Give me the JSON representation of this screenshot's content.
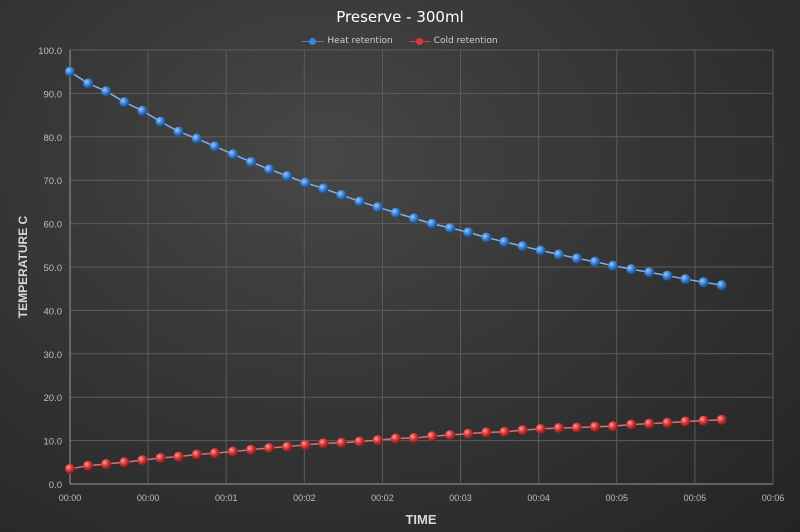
{
  "chart_data": {
    "type": "line",
    "title": "Preserve - 300ml",
    "xlabel": "TIME",
    "ylabel": "TEMPERATURE C",
    "ylim": [
      0,
      100
    ],
    "yticks": [
      "0.0",
      "10.0",
      "20.0",
      "30.0",
      "40.0",
      "50.0",
      "60.0",
      "70.0",
      "80.0",
      "90.0",
      "100.0"
    ],
    "xlim_minutes": [
      0,
      6
    ],
    "xticks": [
      "00:00",
      "00:00",
      "00:01",
      "00:02",
      "00:02",
      "00:03",
      "00:04",
      "00:05",
      "00:05",
      "00:06"
    ],
    "grid": true,
    "legend_position": "top",
    "x_minutes": [
      0,
      0.155,
      0.309,
      0.464,
      0.618,
      0.773,
      0.927,
      1.082,
      1.236,
      1.391,
      1.545,
      1.7,
      1.854,
      2.009,
      2.163,
      2.318,
      2.472,
      2.627,
      2.781,
      2.936,
      3.09,
      3.245,
      3.399,
      3.554,
      3.708,
      3.863,
      4.017,
      4.172,
      4.326,
      4.481,
      4.635,
      4.79,
      4.944,
      5.099,
      5.253,
      5.408,
      5.562
    ],
    "series": [
      {
        "name": "Heat retention",
        "color": "#3d86d8",
        "values": [
          95.0,
          92.3,
          90.5,
          88.0,
          86.0,
          83.5,
          81.2,
          79.6,
          77.8,
          76.0,
          74.2,
          72.5,
          71.0,
          69.4,
          68.1,
          66.6,
          65.1,
          63.8,
          62.5,
          61.2,
          60.0,
          59.0,
          58.0,
          56.8,
          55.8,
          54.8,
          53.8,
          52.9,
          52.0,
          51.2,
          50.3,
          49.5,
          48.8,
          48.0,
          47.2,
          46.5,
          45.8
        ]
      },
      {
        "name": "Cold retention",
        "color": "#d83a3a",
        "values": [
          3.5,
          4.2,
          4.6,
          5.0,
          5.5,
          6.0,
          6.3,
          6.8,
          7.1,
          7.5,
          7.9,
          8.3,
          8.6,
          9.0,
          9.4,
          9.5,
          9.8,
          10.1,
          10.5,
          10.6,
          11.0,
          11.3,
          11.6,
          11.9,
          12.0,
          12.4,
          12.7,
          12.9,
          13.0,
          13.2,
          13.3,
          13.7,
          13.9,
          14.1,
          14.4,
          14.6,
          14.8
        ]
      }
    ]
  }
}
